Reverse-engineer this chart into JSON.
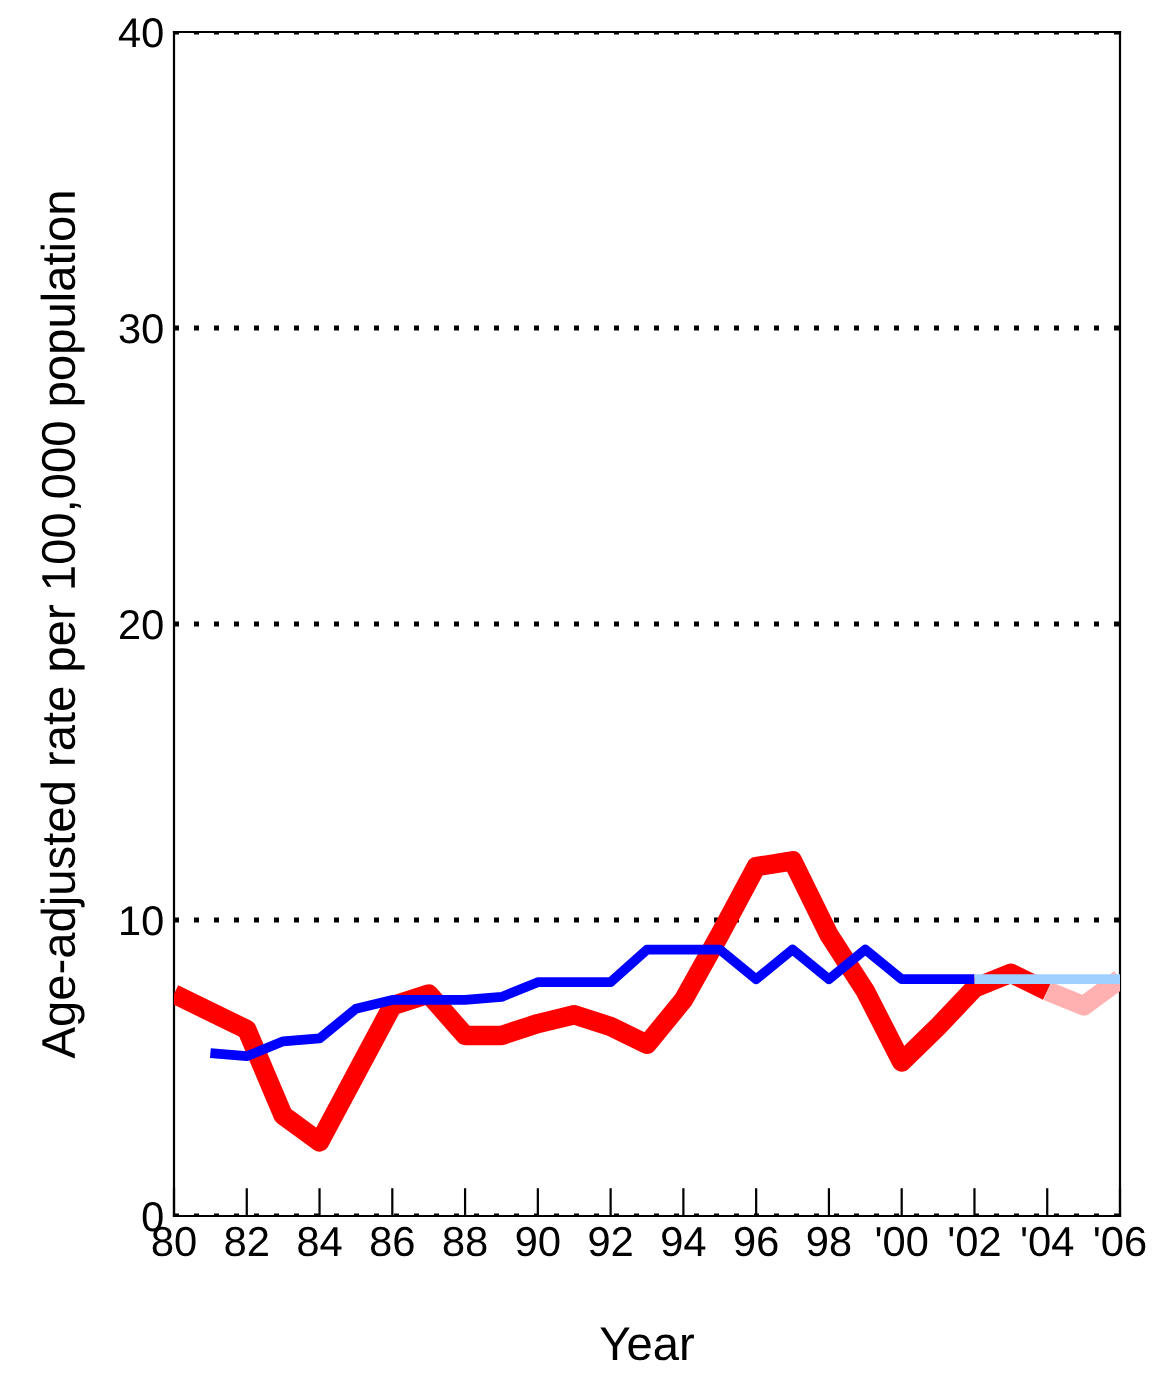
{
  "chart_data": {
    "type": "line",
    "xlabel": "Year",
    "ylabel": "Age-adjusted rate per 100,000 population",
    "xlim": [
      1980,
      2006
    ],
    "xticks": [
      {
        "value": 1980,
        "label": "80"
      },
      {
        "value": 1982,
        "label": "82"
      },
      {
        "value": 1984,
        "label": "84"
      },
      {
        "value": 1986,
        "label": "86"
      },
      {
        "value": 1988,
        "label": "88"
      },
      {
        "value": 1990,
        "label": "90"
      },
      {
        "value": 1992,
        "label": "92"
      },
      {
        "value": 1994,
        "label": "94"
      },
      {
        "value": 1996,
        "label": "96"
      },
      {
        "value": 1998,
        "label": "98"
      },
      {
        "value": 2000,
        "label": "'00"
      },
      {
        "value": 2002,
        "label": "'02"
      },
      {
        "value": 2004,
        "label": "'04"
      },
      {
        "value": 2006,
        "label": "'06"
      }
    ],
    "ylim": [
      0,
      40
    ],
    "yticks": [
      0,
      10,
      20,
      30,
      40
    ],
    "grid": "y",
    "legend": false,
    "marker": "none",
    "line_style": "solid",
    "series": [
      {
        "color": "#ff0000",
        "x": [
          1980,
          1981,
          1982,
          1983,
          1984,
          1985,
          1986,
          1987,
          1988,
          1989,
          1990,
          1991,
          1992,
          1993,
          1994,
          1995,
          1996,
          1997,
          1998,
          1999,
          2000,
          2001,
          2002,
          2003,
          2004
        ],
        "values": [
          7.5,
          6.9,
          6.3,
          3.4,
          2.5,
          4.8,
          7.1,
          7.5,
          6.1,
          6.1,
          6.5,
          6.8,
          6.4,
          5.8,
          7.3,
          9.5,
          11.8,
          12.0,
          9.5,
          7.6,
          5.2,
          6.4,
          7.7,
          8.2,
          7.6
        ]
      },
      {
        "color": "#ffb0b0",
        "x": [
          2004,
          2005,
          2006
        ],
        "values": [
          7.6,
          7.1,
          8.0
        ]
      },
      {
        "color": "#0000ff",
        "x": [
          1981,
          1982,
          1983,
          1984,
          1985,
          1986,
          1987,
          1988,
          1989,
          1990,
          1991,
          1992,
          1993,
          1994,
          1995,
          1996,
          1997,
          1998,
          1999,
          2000,
          2001,
          2002
        ],
        "values": [
          5.5,
          5.4,
          5.9,
          6.0,
          7.0,
          7.3,
          7.3,
          7.3,
          7.4,
          7.9,
          7.9,
          7.9,
          9.0,
          9.0,
          9.0,
          8.0,
          9.0,
          8.0,
          9.0,
          8.0,
          8.0,
          8.0
        ]
      },
      {
        "color": "#a0d0ff",
        "x": [
          2002,
          2003,
          2004,
          2005,
          2006
        ],
        "values": [
          8.0,
          8.0,
          8.0,
          8.0,
          8.0
        ]
      }
    ]
  }
}
